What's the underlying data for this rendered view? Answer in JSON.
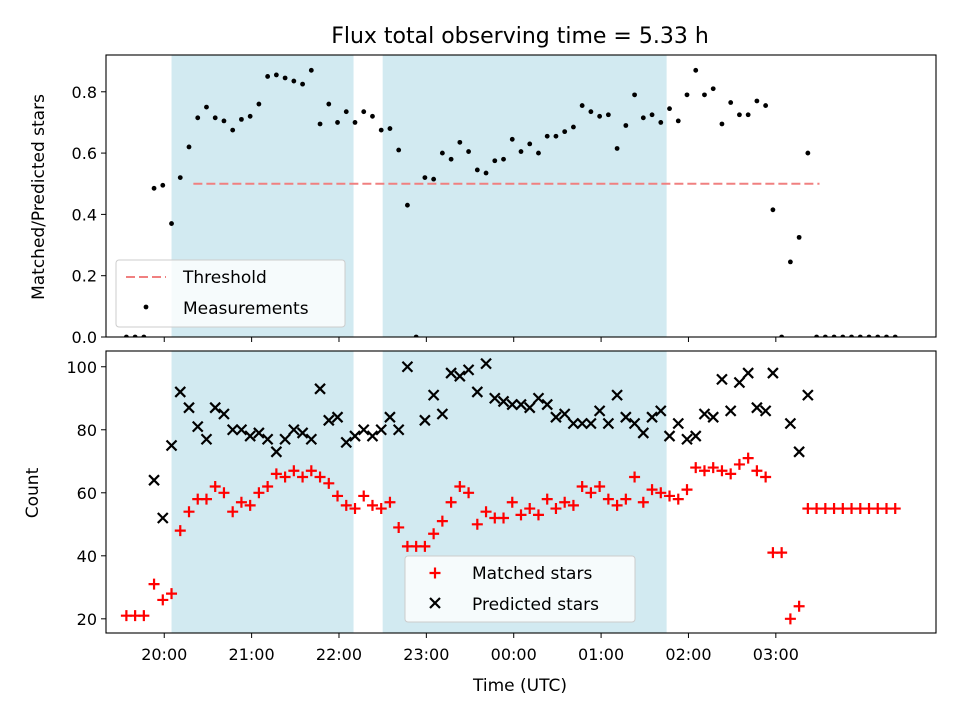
{
  "chart_data": [
    {
      "type": "scatter",
      "title": "Flux total observing time = 5.33 h",
      "xlabel": "",
      "ylabel": "Matched/Predicted stars",
      "ylim": [
        0,
        0.92
      ],
      "yticks": [
        "0.0",
        "0.2",
        "0.4",
        "0.6",
        "0.8"
      ],
      "legend": "lower-left",
      "threshold": {
        "name": "Threshold",
        "value": 0.5,
        "x_start_min": 20,
        "x_end_min": 450,
        "color": "#f08080"
      },
      "series": [
        {
          "name": "Measurements",
          "color": "#000000",
          "points": [
            [
              -26,
              0.0
            ],
            [
              -20,
              0.0
            ],
            [
              -14,
              0.0
            ],
            [
              -7,
              0.485
            ],
            [
              -1,
              0.495
            ],
            [
              5,
              0.37
            ],
            [
              11,
              0.52
            ],
            [
              17,
              0.62
            ],
            [
              23,
              0.715
            ],
            [
              29,
              0.75
            ],
            [
              35,
              0.715
            ],
            [
              41,
              0.705
            ],
            [
              47,
              0.675
            ],
            [
              53,
              0.71
            ],
            [
              59,
              0.72
            ],
            [
              65,
              0.76
            ],
            [
              71,
              0.85
            ],
            [
              77,
              0.855
            ],
            [
              83,
              0.845
            ],
            [
              89,
              0.835
            ],
            [
              95,
              0.825
            ],
            [
              101,
              0.87
            ],
            [
              107,
              0.695
            ],
            [
              113,
              0.76
            ],
            [
              119,
              0.7
            ],
            [
              125,
              0.735
            ],
            [
              131,
              0.7
            ],
            [
              137,
              0.735
            ],
            [
              143,
              0.72
            ],
            [
              149,
              0.675
            ],
            [
              155,
              0.68
            ],
            [
              161,
              0.61
            ],
            [
              167,
              0.43
            ],
            [
              173,
              0.0
            ],
            [
              179,
              0.52
            ],
            [
              185,
              0.515
            ],
            [
              191,
              0.6
            ],
            [
              197,
              0.58
            ],
            [
              203,
              0.635
            ],
            [
              209,
              0.605
            ],
            [
              215,
              0.545
            ],
            [
              221,
              0.535
            ],
            [
              227,
              0.575
            ],
            [
              233,
              0.58
            ],
            [
              239,
              0.645
            ],
            [
              245,
              0.605
            ],
            [
              251,
              0.63
            ],
            [
              257,
              0.6
            ],
            [
              263,
              0.655
            ],
            [
              269,
              0.655
            ],
            [
              275,
              0.67
            ],
            [
              281,
              0.685
            ],
            [
              287,
              0.755
            ],
            [
              293,
              0.735
            ],
            [
              299,
              0.72
            ],
            [
              305,
              0.725
            ],
            [
              311,
              0.615
            ],
            [
              317,
              0.69
            ],
            [
              323,
              0.79
            ],
            [
              329,
              0.715
            ],
            [
              335,
              0.725
            ],
            [
              341,
              0.7
            ],
            [
              347,
              0.745
            ],
            [
              353,
              0.705
            ],
            [
              359,
              0.79
            ],
            [
              365,
              0.87
            ],
            [
              371,
              0.79
            ],
            [
              377,
              0.81
            ],
            [
              383,
              0.695
            ],
            [
              389,
              0.765
            ],
            [
              395,
              0.725
            ],
            [
              401,
              0.725
            ],
            [
              407,
              0.77
            ],
            [
              413,
              0.755
            ],
            [
              418,
              0.415
            ],
            [
              424,
              0.0
            ],
            [
              430,
              0.245
            ],
            [
              436,
              0.325
            ],
            [
              442,
              0.6
            ],
            [
              448,
              0.0
            ],
            [
              454,
              0.0
            ],
            [
              460,
              0.0
            ],
            [
              466,
              0.0
            ],
            [
              472,
              0.0
            ],
            [
              478,
              0.0
            ],
            [
              484,
              0.0
            ],
            [
              490,
              0.0
            ],
            [
              496,
              0.0
            ],
            [
              502,
              0.0
            ]
          ]
        }
      ],
      "shaded_regions_min": [
        [
          5,
          130
        ],
        [
          150,
          345
        ]
      ],
      "shade_color": "#add8e6"
    },
    {
      "type": "scatter",
      "title": "",
      "xlabel": "Time (UTC)",
      "ylabel": "Count",
      "ylim": [
        15.5,
        105
      ],
      "yticks": [
        "20",
        "40",
        "60",
        "80",
        "100"
      ],
      "xticks": [
        "20:00",
        "21:00",
        "22:00",
        "23:00",
        "00:00",
        "01:00",
        "02:00",
        "03:00"
      ],
      "x_origin": "20:00",
      "xlim_min": [
        -40,
        530
      ],
      "legend": "lower-center",
      "series": [
        {
          "name": "Matched stars",
          "color": "#ff0000",
          "marker": "+",
          "points": [
            [
              -26,
              21
            ],
            [
              -20,
              21
            ],
            [
              -14,
              21
            ],
            [
              -7,
              31
            ],
            [
              -1,
              26
            ],
            [
              5,
              28
            ],
            [
              11,
              48
            ],
            [
              17,
              54
            ],
            [
              23,
              58
            ],
            [
              29,
              58
            ],
            [
              35,
              62
            ],
            [
              41,
              60
            ],
            [
              47,
              54
            ],
            [
              53,
              57
            ],
            [
              59,
              56
            ],
            [
              65,
              60
            ],
            [
              71,
              62
            ],
            [
              77,
              66
            ],
            [
              83,
              65
            ],
            [
              89,
              67
            ],
            [
              95,
              65
            ],
            [
              101,
              67
            ],
            [
              107,
              65
            ],
            [
              113,
              63
            ],
            [
              119,
              59
            ],
            [
              125,
              56
            ],
            [
              131,
              55
            ],
            [
              137,
              59
            ],
            [
              143,
              56
            ],
            [
              149,
              55
            ],
            [
              155,
              57
            ],
            [
              161,
              49
            ],
            [
              167,
              43
            ],
            [
              173,
              43
            ],
            [
              179,
              43
            ],
            [
              185,
              47
            ],
            [
              191,
              51
            ],
            [
              197,
              57
            ],
            [
              203,
              62
            ],
            [
              209,
              60
            ],
            [
              215,
              50
            ],
            [
              221,
              54
            ],
            [
              227,
              52
            ],
            [
              233,
              52
            ],
            [
              239,
              57
            ],
            [
              245,
              53
            ],
            [
              251,
              55
            ],
            [
              257,
              53
            ],
            [
              263,
              58
            ],
            [
              269,
              55
            ],
            [
              275,
              57
            ],
            [
              281,
              56
            ],
            [
              287,
              62
            ],
            [
              293,
              60
            ],
            [
              299,
              62
            ],
            [
              305,
              58
            ],
            [
              311,
              56
            ],
            [
              317,
              58
            ],
            [
              323,
              65
            ],
            [
              329,
              57
            ],
            [
              335,
              61
            ],
            [
              341,
              60
            ],
            [
              347,
              59
            ],
            [
              353,
              58
            ],
            [
              359,
              61
            ],
            [
              365,
              68
            ],
            [
              371,
              67
            ],
            [
              377,
              68
            ],
            [
              383,
              67
            ],
            [
              389,
              66
            ],
            [
              395,
              69
            ],
            [
              401,
              71
            ],
            [
              407,
              67
            ],
            [
              413,
              65
            ],
            [
              418,
              41
            ],
            [
              424,
              41
            ],
            [
              430,
              20
            ],
            [
              436,
              24
            ],
            [
              442,
              55
            ],
            [
              448,
              55
            ],
            [
              454,
              55
            ],
            [
              460,
              55
            ],
            [
              466,
              55
            ],
            [
              472,
              55
            ],
            [
              478,
              55
            ],
            [
              484,
              55
            ],
            [
              490,
              55
            ],
            [
              496,
              55
            ],
            [
              502,
              55
            ]
          ]
        },
        {
          "name": "Predicted stars",
          "color": "#000000",
          "marker": "x",
          "points": [
            [
              -7,
              64
            ],
            [
              -1,
              52
            ],
            [
              5,
              75
            ],
            [
              11,
              92
            ],
            [
              17,
              87
            ],
            [
              23,
              81
            ],
            [
              29,
              77
            ],
            [
              35,
              87
            ],
            [
              41,
              85
            ],
            [
              47,
              80
            ],
            [
              53,
              80
            ],
            [
              59,
              78
            ],
            [
              65,
              79
            ],
            [
              71,
              77
            ],
            [
              77,
              73
            ],
            [
              83,
              77
            ],
            [
              89,
              80
            ],
            [
              95,
              79
            ],
            [
              101,
              77
            ],
            [
              107,
              93
            ],
            [
              113,
              83
            ],
            [
              119,
              84
            ],
            [
              125,
              76
            ],
            [
              131,
              78
            ],
            [
              137,
              80
            ],
            [
              143,
              78
            ],
            [
              149,
              80
            ],
            [
              155,
              84
            ],
            [
              161,
              80
            ],
            [
              167,
              100
            ],
            [
              179,
              83
            ],
            [
              185,
              91
            ],
            [
              191,
              85
            ],
            [
              197,
              98
            ],
            [
              203,
              97
            ],
            [
              209,
              99
            ],
            [
              215,
              92
            ],
            [
              221,
              101
            ],
            [
              227,
              90
            ],
            [
              233,
              89
            ],
            [
              239,
              88
            ],
            [
              245,
              88
            ],
            [
              251,
              87
            ],
            [
              257,
              90
            ],
            [
              263,
              88
            ],
            [
              269,
              84
            ],
            [
              275,
              85
            ],
            [
              281,
              82
            ],
            [
              287,
              82
            ],
            [
              293,
              82
            ],
            [
              299,
              86
            ],
            [
              305,
              82
            ],
            [
              311,
              91
            ],
            [
              317,
              84
            ],
            [
              323,
              82
            ],
            [
              329,
              79
            ],
            [
              335,
              84
            ],
            [
              341,
              86
            ],
            [
              347,
              78
            ],
            [
              353,
              82
            ],
            [
              359,
              77
            ],
            [
              365,
              78
            ],
            [
              371,
              85
            ],
            [
              377,
              84
            ],
            [
              383,
              96
            ],
            [
              389,
              86
            ],
            [
              395,
              95
            ],
            [
              401,
              98
            ],
            [
              407,
              87
            ],
            [
              413,
              86
            ],
            [
              418,
              98
            ],
            [
              430,
              82
            ],
            [
              436,
              73
            ],
            [
              442,
              91
            ]
          ]
        }
      ],
      "shaded_regions_min": [
        [
          5,
          130
        ],
        [
          150,
          345
        ]
      ],
      "shade_color": "#add8e6"
    }
  ]
}
